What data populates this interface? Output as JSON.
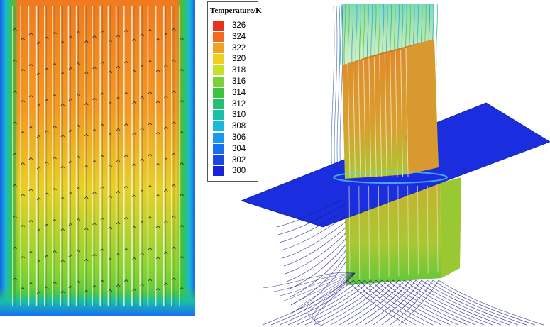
{
  "legend": {
    "title": "Temperature/K",
    "levels": [
      {
        "label": "326",
        "color": "#e8321a"
      },
      {
        "label": "324",
        "color": "#f26a1e"
      },
      {
        "label": "322",
        "color": "#f2a020"
      },
      {
        "label": "320",
        "color": "#efd020"
      },
      {
        "label": "318",
        "color": "#c8e02a"
      },
      {
        "label": "316",
        "color": "#7ad238"
      },
      {
        "label": "314",
        "color": "#3ec43c"
      },
      {
        "label": "312",
        "color": "#22c070"
      },
      {
        "label": "310",
        "color": "#18c0a8"
      },
      {
        "label": "308",
        "color": "#18b8d8"
      },
      {
        "label": "306",
        "color": "#1898f0"
      },
      {
        "label": "304",
        "color": "#1870f0"
      },
      {
        "label": "302",
        "color": "#1848e8"
      },
      {
        "label": "300",
        "color": "#1820d8"
      }
    ]
  },
  "colors": {
    "streamline_dark": "#1a1a7a",
    "plane_blue": "#1a2ee0",
    "battery_orange": "#e0a030",
    "battery_yellowgreen": "#b8d830"
  }
}
